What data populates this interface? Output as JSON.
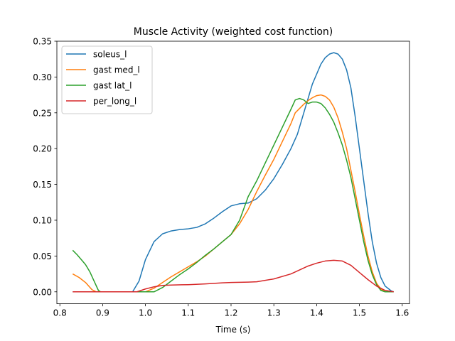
{
  "chart_data": {
    "type": "line",
    "title": "Muscle Activity (weighted cost function)",
    "xlabel": "Time (s)",
    "ylabel": "",
    "xlim": [
      0.793,
      1.617
    ],
    "ylim": [
      -0.0167,
      0.35
    ],
    "xticks": [
      0.8,
      0.9,
      1.0,
      1.1,
      1.2,
      1.3,
      1.4,
      1.5,
      1.6
    ],
    "xtick_labels": [
      "0.8",
      "0.9",
      "1.0",
      "1.1",
      "1.2",
      "1.3",
      "1.4",
      "1.5",
      "1.6"
    ],
    "yticks": [
      0.0,
      0.05,
      0.1,
      0.15,
      0.2,
      0.25,
      0.3,
      0.35
    ],
    "ytick_labels": [
      "0.00",
      "0.05",
      "0.10",
      "0.15",
      "0.20",
      "0.25",
      "0.30",
      "0.35"
    ],
    "grid": false,
    "legend_position": "top-left",
    "series": [
      {
        "name": "soleus_l",
        "color": "#1f77b4",
        "points": [
          [
            0.83,
            0.0
          ],
          [
            0.9,
            0.0
          ],
          [
            0.97,
            0.0
          ],
          [
            0.985,
            0.015
          ],
          [
            1.0,
            0.045
          ],
          [
            1.02,
            0.07
          ],
          [
            1.04,
            0.081
          ],
          [
            1.06,
            0.085
          ],
          [
            1.08,
            0.087
          ],
          [
            1.1,
            0.088
          ],
          [
            1.12,
            0.09
          ],
          [
            1.14,
            0.095
          ],
          [
            1.16,
            0.103
          ],
          [
            1.18,
            0.112
          ],
          [
            1.2,
            0.12
          ],
          [
            1.22,
            0.123
          ],
          [
            1.24,
            0.124
          ],
          [
            1.26,
            0.13
          ],
          [
            1.28,
            0.142
          ],
          [
            1.3,
            0.158
          ],
          [
            1.32,
            0.178
          ],
          [
            1.34,
            0.2
          ],
          [
            1.355,
            0.22
          ],
          [
            1.37,
            0.25
          ],
          [
            1.38,
            0.27
          ],
          [
            1.39,
            0.29
          ],
          [
            1.41,
            0.318
          ],
          [
            1.42,
            0.327
          ],
          [
            1.43,
            0.332
          ],
          [
            1.44,
            0.334
          ],
          [
            1.45,
            0.332
          ],
          [
            1.46,
            0.325
          ],
          [
            1.47,
            0.31
          ],
          [
            1.48,
            0.285
          ],
          [
            1.49,
            0.245
          ],
          [
            1.5,
            0.2
          ],
          [
            1.51,
            0.155
          ],
          [
            1.52,
            0.11
          ],
          [
            1.53,
            0.07
          ],
          [
            1.54,
            0.04
          ],
          [
            1.55,
            0.02
          ],
          [
            1.56,
            0.008
          ],
          [
            1.575,
            0.001
          ],
          [
            1.58,
            0.0
          ]
        ]
      },
      {
        "name": "gast med_l",
        "color": "#ff7f0e",
        "points": [
          [
            0.83,
            0.025
          ],
          [
            0.845,
            0.02
          ],
          [
            0.86,
            0.013
          ],
          [
            0.875,
            0.003
          ],
          [
            0.885,
            0.0
          ],
          [
            1.0,
            0.0
          ],
          [
            1.02,
            0.005
          ],
          [
            1.04,
            0.013
          ],
          [
            1.06,
            0.021
          ],
          [
            1.08,
            0.028
          ],
          [
            1.1,
            0.035
          ],
          [
            1.12,
            0.042
          ],
          [
            1.14,
            0.05
          ],
          [
            1.16,
            0.06
          ],
          [
            1.18,
            0.07
          ],
          [
            1.2,
            0.08
          ],
          [
            1.22,
            0.095
          ],
          [
            1.24,
            0.115
          ],
          [
            1.26,
            0.14
          ],
          [
            1.28,
            0.163
          ],
          [
            1.3,
            0.185
          ],
          [
            1.32,
            0.21
          ],
          [
            1.34,
            0.235
          ],
          [
            1.35,
            0.25
          ],
          [
            1.37,
            0.262
          ],
          [
            1.38,
            0.267
          ],
          [
            1.39,
            0.271
          ],
          [
            1.4,
            0.274
          ],
          [
            1.41,
            0.275
          ],
          [
            1.42,
            0.273
          ],
          [
            1.43,
            0.268
          ],
          [
            1.44,
            0.258
          ],
          [
            1.45,
            0.243
          ],
          [
            1.46,
            0.223
          ],
          [
            1.47,
            0.2
          ],
          [
            1.48,
            0.17
          ],
          [
            1.49,
            0.14
          ],
          [
            1.5,
            0.108
          ],
          [
            1.51,
            0.078
          ],
          [
            1.52,
            0.05
          ],
          [
            1.53,
            0.028
          ],
          [
            1.54,
            0.012
          ],
          [
            1.55,
            0.004
          ],
          [
            1.56,
            0.0
          ],
          [
            1.58,
            0.0
          ]
        ]
      },
      {
        "name": "gast lat_l",
        "color": "#2ca02c",
        "points": [
          [
            0.83,
            0.058
          ],
          [
            0.84,
            0.052
          ],
          [
            0.85,
            0.045
          ],
          [
            0.86,
            0.038
          ],
          [
            0.87,
            0.028
          ],
          [
            0.88,
            0.015
          ],
          [
            0.89,
            0.002
          ],
          [
            0.895,
            0.0
          ],
          [
            1.02,
            0.0
          ],
          [
            1.04,
            0.006
          ],
          [
            1.06,
            0.015
          ],
          [
            1.08,
            0.024
          ],
          [
            1.1,
            0.032
          ],
          [
            1.12,
            0.041
          ],
          [
            1.14,
            0.051
          ],
          [
            1.16,
            0.06
          ],
          [
            1.18,
            0.07
          ],
          [
            1.2,
            0.08
          ],
          [
            1.22,
            0.1
          ],
          [
            1.24,
            0.133
          ],
          [
            1.26,
            0.155
          ],
          [
            1.28,
            0.18
          ],
          [
            1.3,
            0.205
          ],
          [
            1.32,
            0.23
          ],
          [
            1.34,
            0.255
          ],
          [
            1.35,
            0.268
          ],
          [
            1.36,
            0.27
          ],
          [
            1.37,
            0.268
          ],
          [
            1.38,
            0.263
          ],
          [
            1.39,
            0.265
          ],
          [
            1.4,
            0.265
          ],
          [
            1.41,
            0.263
          ],
          [
            1.42,
            0.257
          ],
          [
            1.43,
            0.248
          ],
          [
            1.44,
            0.237
          ],
          [
            1.45,
            0.222
          ],
          [
            1.46,
            0.205
          ],
          [
            1.47,
            0.184
          ],
          [
            1.48,
            0.16
          ],
          [
            1.49,
            0.13
          ],
          [
            1.5,
            0.1
          ],
          [
            1.51,
            0.07
          ],
          [
            1.52,
            0.044
          ],
          [
            1.53,
            0.024
          ],
          [
            1.54,
            0.01
          ],
          [
            1.55,
            0.002
          ],
          [
            1.56,
            0.0
          ],
          [
            1.58,
            0.0
          ]
        ]
      },
      {
        "name": "per_long_l",
        "color": "#d62728",
        "points": [
          [
            0.83,
            0.0
          ],
          [
            0.98,
            0.0
          ],
          [
            1.0,
            0.004
          ],
          [
            1.02,
            0.007
          ],
          [
            1.04,
            0.009
          ],
          [
            1.06,
            0.0095
          ],
          [
            1.1,
            0.01
          ],
          [
            1.14,
            0.011
          ],
          [
            1.18,
            0.0125
          ],
          [
            1.2,
            0.013
          ],
          [
            1.24,
            0.0135
          ],
          [
            1.26,
            0.014
          ],
          [
            1.3,
            0.018
          ],
          [
            1.34,
            0.025
          ],
          [
            1.38,
            0.036
          ],
          [
            1.4,
            0.04
          ],
          [
            1.42,
            0.043
          ],
          [
            1.44,
            0.044
          ],
          [
            1.46,
            0.043
          ],
          [
            1.48,
            0.037
          ],
          [
            1.5,
            0.027
          ],
          [
            1.52,
            0.017
          ],
          [
            1.54,
            0.008
          ],
          [
            1.56,
            0.002
          ],
          [
            1.58,
            0.0
          ]
        ]
      }
    ]
  }
}
